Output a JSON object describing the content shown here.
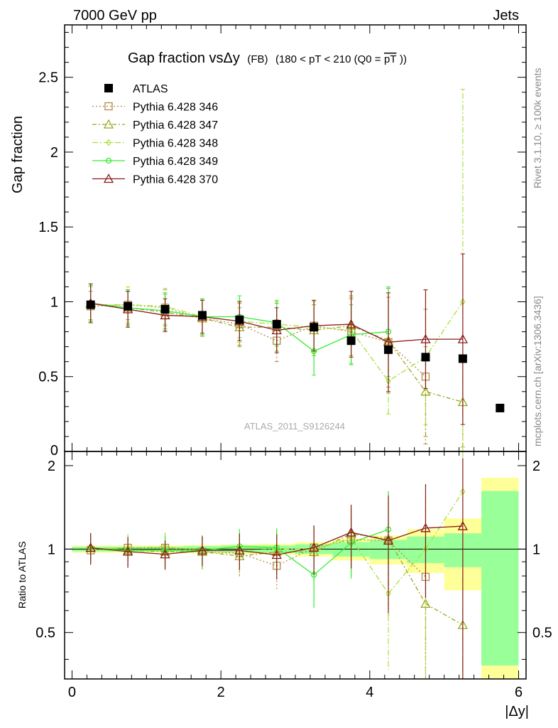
{
  "header": {
    "left": "7000 GeV pp",
    "right": "Jets"
  },
  "side": {
    "rivet": "Rivet 3.1.10, ≥ 100k events",
    "mcplots": "mcplots.cern.ch [arXiv:1306.3436]"
  },
  "chart_data": {
    "type": "scatter",
    "title": "Gap fraction vsΔy",
    "title_small": "(FB)",
    "title_cut": "(180 < pT < 210 (Q0 =",
    "title_cut_over": "pT",
    "title_cut_end": "))",
    "analysis_label": "ATLAS_2011_S9126244",
    "ylabel": "Gap fraction",
    "ratio_ylabel": "Ratio to ATLAS",
    "xlabel": "|Δy|",
    "xlim": [
      -0.1,
      6.1
    ],
    "ylim": [
      0,
      2.85
    ],
    "ratio_ylim": [
      0.34,
      2.25
    ],
    "x_ticks": [
      0,
      2,
      4,
      6
    ],
    "x_tick_labels": [
      "0",
      "2",
      "4",
      "6"
    ],
    "y_ticks": [
      0.5,
      1,
      1.5,
      2,
      2.5
    ],
    "y_tick_labels": [
      "0.5",
      "1",
      "1.5",
      "2",
      "2.5"
    ],
    "y_zero_label": "0",
    "ratio_ticks": [
      0.5,
      1,
      2
    ],
    "ratio_tick_labels": [
      "0.5",
      "1",
      "2"
    ],
    "legend_position": "top-left",
    "reference": {
      "name": "ATLAS",
      "color": "#000000",
      "marker": "square",
      "x": [
        0.25,
        0.75,
        1.25,
        1.75,
        2.25,
        2.75,
        3.25,
        3.75,
        4.25,
        4.75,
        5.25,
        5.75
      ],
      "y": [
        0.98,
        0.97,
        0.95,
        0.91,
        0.88,
        0.85,
        0.83,
        0.74,
        0.68,
        0.63,
        0.62,
        0.29
      ],
      "ratio_band_green": [
        0.02,
        0.02,
        0.02,
        0.025,
        0.03,
        0.03,
        0.04,
        0.06,
        0.08,
        0.11,
        0.14,
        0.62
      ],
      "ratio_band_yellow": [
        0.03,
        0.03,
        0.03,
        0.035,
        0.04,
        0.045,
        0.06,
        0.09,
        0.12,
        0.18,
        0.29,
        0.81
      ]
    },
    "series": [
      {
        "name": "Pythia 6.428 346",
        "color": "#b58a4a",
        "dash": "2,3",
        "marker": "square-open",
        "x": [
          0.25,
          0.75,
          1.25,
          1.75,
          2.25,
          2.75,
          3.25,
          3.75,
          4.25,
          4.75
        ],
        "y": [
          0.97,
          0.98,
          0.96,
          0.89,
          0.85,
          0.74,
          0.84,
          0.8,
          0.73,
          0.5
        ],
        "err": [
          0.1,
          0.1,
          0.12,
          0.12,
          0.14,
          0.14,
          0.17,
          0.22,
          0.3,
          0.45
        ]
      },
      {
        "name": "Pythia 6.428 347",
        "color": "#9aa61e",
        "dash": "6,3,2,3",
        "marker": "triangle-open",
        "x": [
          0.25,
          0.75,
          1.25,
          1.75,
          2.25,
          2.75,
          3.25,
          3.75,
          4.25,
          4.75,
          5.25
        ],
        "y": [
          0.99,
          0.96,
          0.93,
          0.89,
          0.83,
          0.83,
          0.81,
          0.84,
          0.74,
          0.4,
          0.33
        ],
        "err": [
          0.11,
          0.11,
          0.12,
          0.12,
          0.13,
          0.16,
          0.17,
          0.2,
          0.35,
          0.3,
          0.3
        ]
      },
      {
        "name": "Pythia 6.428 348",
        "color": "#a8e03a",
        "dash": "8,3,2,3",
        "marker": "diamond",
        "x": [
          0.25,
          0.75,
          1.25,
          1.75,
          2.25,
          2.75,
          3.25,
          3.75,
          4.25,
          4.75,
          5.25
        ],
        "y": [
          0.98,
          0.98,
          0.97,
          0.9,
          0.87,
          0.85,
          0.83,
          0.81,
          0.47,
          0.63,
          1.0
        ],
        "err": [
          0.12,
          0.12,
          0.12,
          0.12,
          0.14,
          0.15,
          0.17,
          0.22,
          0.22,
          0.45,
          1.42
        ]
      },
      {
        "name": "Pythia 6.428 349",
        "color": "#33ee33",
        "dash": "",
        "marker": "circle",
        "x": [
          0.25,
          0.75,
          1.25,
          1.75,
          2.25,
          2.75,
          3.25,
          3.75,
          4.25
        ],
        "y": [
          0.99,
          0.96,
          0.94,
          0.9,
          0.9,
          0.86,
          0.67,
          0.78,
          0.8
        ],
        "err": [
          0.12,
          0.12,
          0.12,
          0.12,
          0.14,
          0.15,
          0.16,
          0.2,
          0.3
        ]
      },
      {
        "name": "Pythia 6.428 370",
        "color": "#8b1a1a",
        "dash": "",
        "marker": "triangle-open",
        "x": [
          0.25,
          0.75,
          1.25,
          1.75,
          2.25,
          2.75,
          3.25,
          3.75,
          4.25,
          4.75,
          5.25
        ],
        "y": [
          0.99,
          0.95,
          0.91,
          0.9,
          0.87,
          0.81,
          0.84,
          0.85,
          0.73,
          0.75,
          0.75
        ],
        "err": [
          0.13,
          0.12,
          0.11,
          0.11,
          0.13,
          0.15,
          0.17,
          0.22,
          0.33,
          0.33,
          0.57
        ]
      }
    ]
  }
}
